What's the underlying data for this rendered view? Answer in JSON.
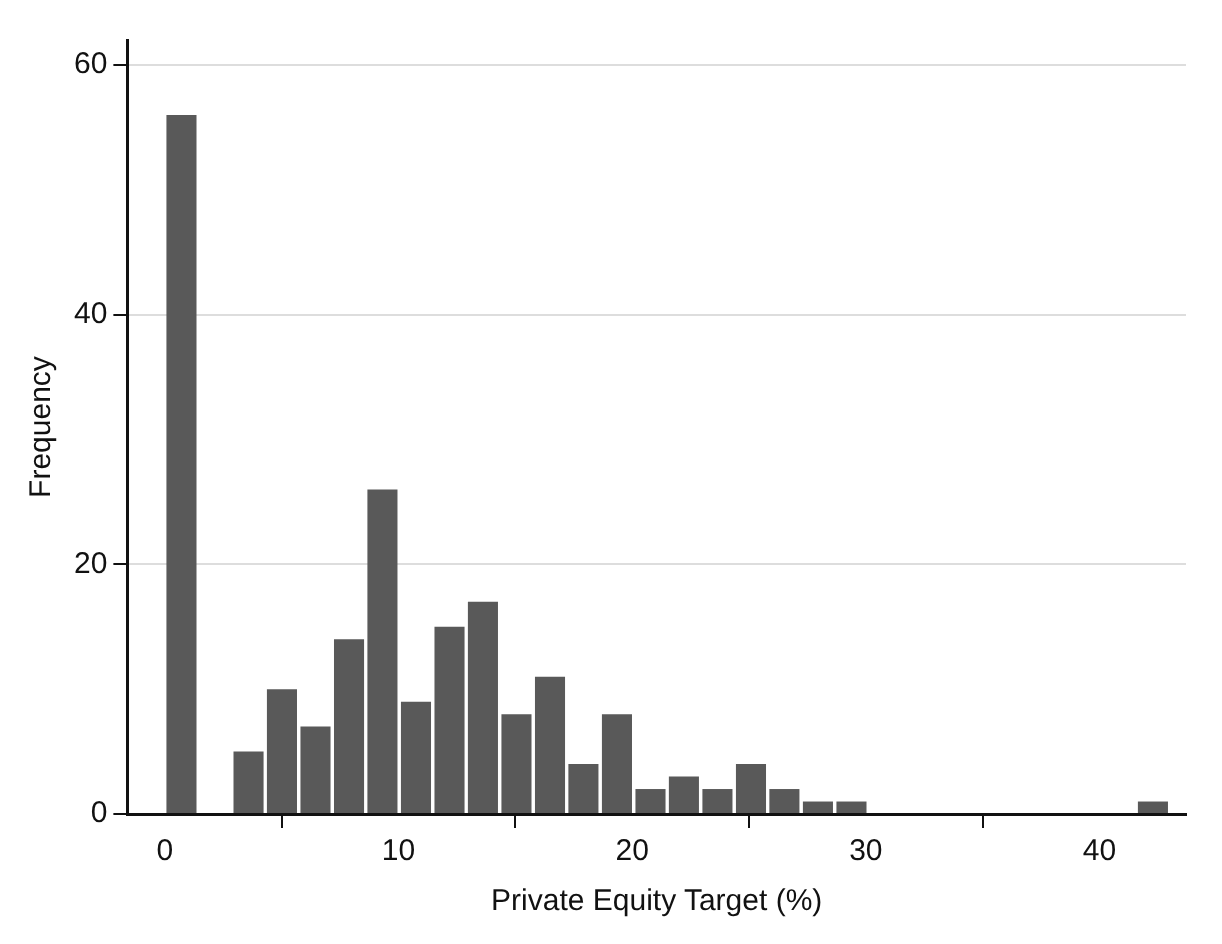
{
  "chart_data": {
    "type": "histogram",
    "xlabel": "Private Equity Target (%)",
    "ylabel": "Frequency",
    "bins": [
      0,
      1.43,
      2.87,
      4.3,
      5.73,
      7.17,
      8.6,
      10.03,
      11.47,
      12.9,
      14.33,
      15.77,
      17.2,
      18.63,
      20.07,
      21.5,
      22.93,
      24.37,
      25.8,
      27.23,
      28.67,
      30.1,
      31.53,
      32.97,
      34.4,
      35.83,
      37.27,
      38.7,
      40.13,
      41.57,
      43
    ],
    "values": [
      56,
      0,
      5,
      10,
      7,
      14,
      26,
      9,
      15,
      17,
      8,
      11,
      4,
      8,
      2,
      3,
      2,
      4,
      2,
      1,
      1,
      0,
      0,
      0,
      0,
      0,
      0,
      0,
      0,
      1
    ],
    "color": "#595959",
    "xlim": [
      -1.6,
      43.7
    ],
    "xticks": [
      0,
      10,
      20,
      30,
      40
    ],
    "ylim": [
      0,
      62
    ],
    "yticks": [
      0,
      20,
      40,
      60
    ],
    "grid": "y",
    "legend": false
  }
}
